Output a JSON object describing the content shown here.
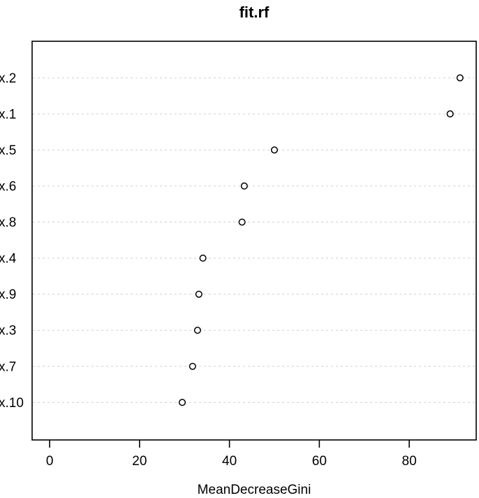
{
  "chart_data": {
    "type": "scatter",
    "subtype": "dotchart-variable-importance",
    "title": "fit.rf",
    "xlabel": "MeanDecreaseGini",
    "ylabel": "",
    "categories": [
      "x.2",
      "x.1",
      "x.5",
      "x.6",
      "x.8",
      "x.4",
      "x.9",
      "x.3",
      "x.7",
      "x.10"
    ],
    "values": [
      91.3,
      89.1,
      50.0,
      43.3,
      42.8,
      34.1,
      33.2,
      32.9,
      31.8,
      29.5
    ],
    "xticks": [
      0,
      20,
      40,
      60,
      80
    ],
    "xlim": [
      -3.9,
      94.9
    ],
    "grid": "horizontal dashed line per category",
    "legend": "none",
    "colors": {
      "point_stroke": "#000000",
      "point_fill": "#ffffff",
      "gridline": "#cfcfcf",
      "axis": "#000000",
      "background": "#ffffff"
    }
  }
}
